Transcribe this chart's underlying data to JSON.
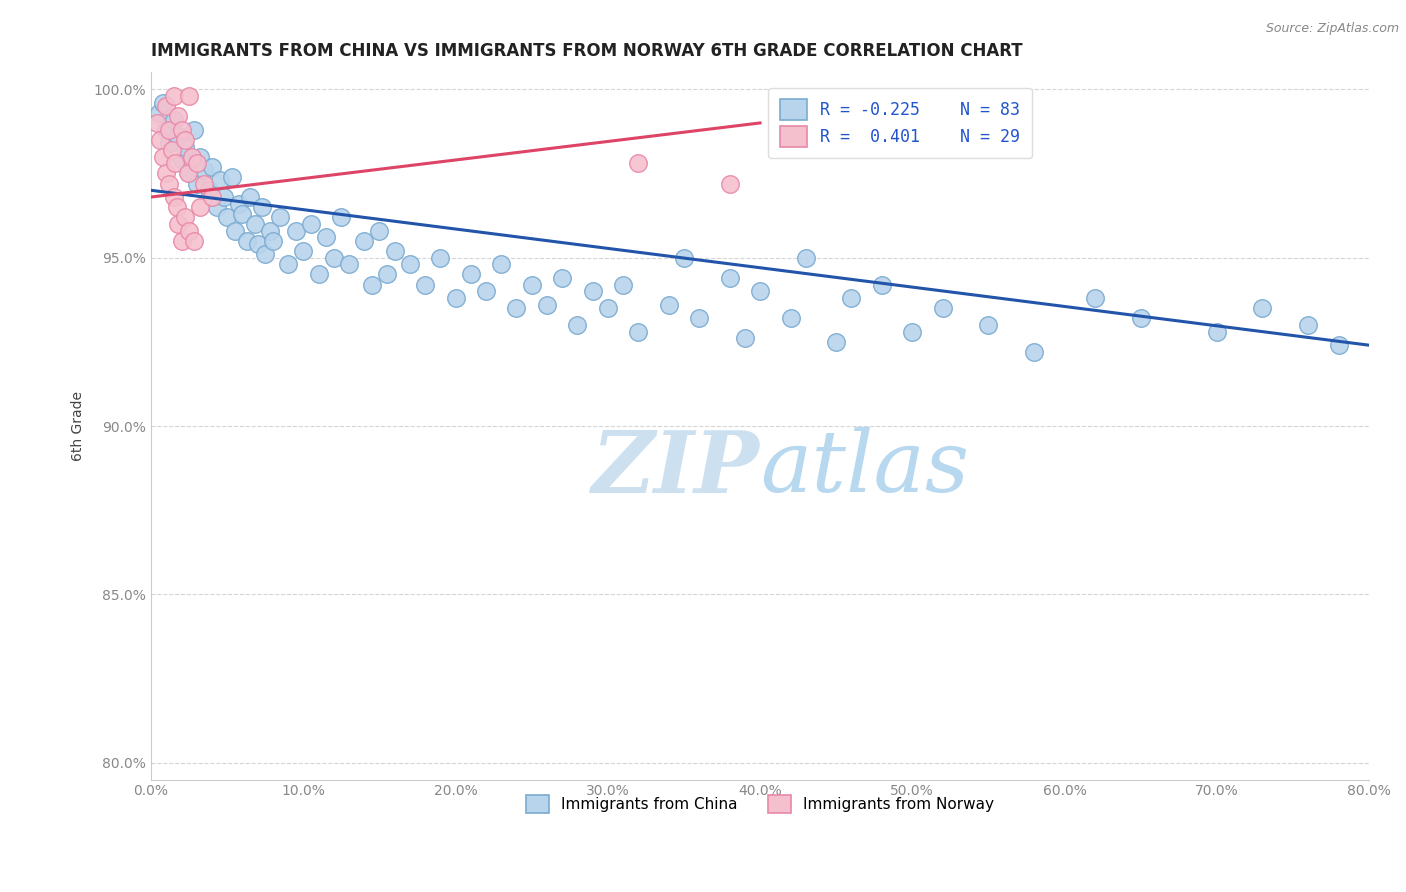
{
  "title": "IMMIGRANTS FROM CHINA VS IMMIGRANTS FROM NORWAY 6TH GRADE CORRELATION CHART",
  "source_text": "Source: ZipAtlas.com",
  "ylabel": "6th Grade",
  "xlim": [
    0.0,
    0.8
  ],
  "ylim": [
    0.795,
    1.005
  ],
  "xtick_labels": [
    "0.0%",
    "10.0%",
    "20.0%",
    "30.0%",
    "40.0%",
    "50.0%",
    "60.0%",
    "70.0%",
    "80.0%"
  ],
  "xtick_values": [
    0.0,
    0.1,
    0.2,
    0.3,
    0.4,
    0.5,
    0.6,
    0.7,
    0.8
  ],
  "ytick_labels": [
    "80.0%",
    "85.0%",
    "90.0%",
    "95.0%",
    "100.0%"
  ],
  "ytick_values": [
    0.8,
    0.85,
    0.9,
    0.95,
    1.0
  ],
  "china_R": -0.225,
  "china_N": 83,
  "norway_R": 0.401,
  "norway_N": 29,
  "china_color": "#b8d4ec",
  "china_edge_color": "#7aaad0",
  "norway_color": "#f5c0ce",
  "norway_edge_color": "#e888a8",
  "china_line_color": "#2255aa",
  "norway_line_color": "#dd4466",
  "watermark_color": "#cce0f0",
  "legend_china_label": "Immigrants from China",
  "legend_norway_label": "Immigrants from Norway",
  "china_scatter_x": [
    0.005,
    0.008,
    0.01,
    0.012,
    0.015,
    0.018,
    0.02,
    0.022,
    0.025,
    0.028,
    0.03,
    0.032,
    0.035,
    0.038,
    0.04,
    0.043,
    0.045,
    0.048,
    0.05,
    0.053,
    0.055,
    0.058,
    0.06,
    0.063,
    0.065,
    0.068,
    0.07,
    0.073,
    0.075,
    0.078,
    0.08,
    0.085,
    0.09,
    0.095,
    0.1,
    0.105,
    0.11,
    0.115,
    0.12,
    0.125,
    0.13,
    0.14,
    0.145,
    0.15,
    0.155,
    0.16,
    0.17,
    0.18,
    0.19,
    0.2,
    0.21,
    0.22,
    0.23,
    0.24,
    0.25,
    0.26,
    0.27,
    0.28,
    0.29,
    0.3,
    0.31,
    0.32,
    0.34,
    0.35,
    0.36,
    0.38,
    0.39,
    0.4,
    0.42,
    0.43,
    0.45,
    0.46,
    0.48,
    0.5,
    0.52,
    0.55,
    0.58,
    0.62,
    0.65,
    0.7,
    0.73,
    0.76,
    0.78
  ],
  "china_scatter_y": [
    0.993,
    0.996,
    0.988,
    0.984,
    0.991,
    0.986,
    0.979,
    0.983,
    0.975,
    0.988,
    0.972,
    0.98,
    0.976,
    0.97,
    0.977,
    0.965,
    0.973,
    0.968,
    0.962,
    0.974,
    0.958,
    0.966,
    0.963,
    0.955,
    0.968,
    0.96,
    0.954,
    0.965,
    0.951,
    0.958,
    0.955,
    0.962,
    0.948,
    0.958,
    0.952,
    0.96,
    0.945,
    0.956,
    0.95,
    0.962,
    0.948,
    0.955,
    0.942,
    0.958,
    0.945,
    0.952,
    0.948,
    0.942,
    0.95,
    0.938,
    0.945,
    0.94,
    0.948,
    0.935,
    0.942,
    0.936,
    0.944,
    0.93,
    0.94,
    0.935,
    0.942,
    0.928,
    0.936,
    0.95,
    0.932,
    0.944,
    0.926,
    0.94,
    0.932,
    0.95,
    0.925,
    0.938,
    0.942,
    0.928,
    0.935,
    0.93,
    0.922,
    0.938,
    0.932,
    0.928,
    0.935,
    0.93,
    0.924
  ],
  "norway_scatter_x": [
    0.004,
    0.006,
    0.008,
    0.01,
    0.01,
    0.012,
    0.012,
    0.014,
    0.015,
    0.015,
    0.016,
    0.017,
    0.018,
    0.018,
    0.02,
    0.02,
    0.022,
    0.022,
    0.024,
    0.025,
    0.025,
    0.027,
    0.028,
    0.03,
    0.032,
    0.035,
    0.04,
    0.32,
    0.38
  ],
  "norway_scatter_y": [
    0.99,
    0.985,
    0.98,
    0.995,
    0.975,
    0.988,
    0.972,
    0.982,
    0.998,
    0.968,
    0.978,
    0.965,
    0.992,
    0.96,
    0.988,
    0.955,
    0.985,
    0.962,
    0.975,
    0.998,
    0.958,
    0.98,
    0.955,
    0.978,
    0.965,
    0.972,
    0.968,
    0.978,
    0.972
  ],
  "china_trendline_x": [
    0.0,
    0.8
  ],
  "china_trendline_y": [
    0.97,
    0.924
  ],
  "norway_trendline_x": [
    0.0,
    0.4
  ],
  "norway_trendline_y": [
    0.968,
    0.99
  ]
}
